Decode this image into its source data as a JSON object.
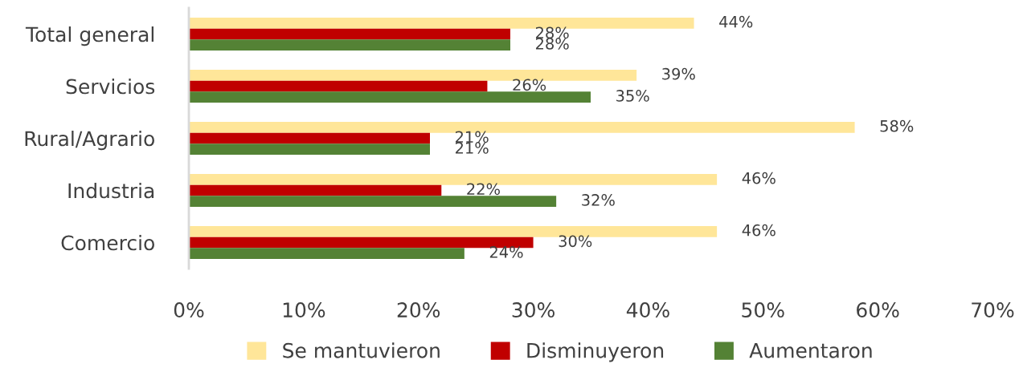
{
  "chart_data": {
    "type": "bar",
    "orientation": "horizontal",
    "categories": [
      "Total general",
      "Servicios",
      "Rural/Agrario",
      "Industria",
      "Comercio"
    ],
    "series": [
      {
        "name": "Se mantuvieron",
        "color": "#ffe699",
        "values": [
          44,
          39,
          58,
          46,
          46
        ],
        "value_labels": [
          "44%",
          "39%",
          "58%",
          "46%",
          "46%"
        ]
      },
      {
        "name": "Disminuyeron",
        "color": "#c00000",
        "values": [
          28,
          26,
          21,
          22,
          30
        ],
        "value_labels": [
          "28%",
          "26%",
          "21%",
          "22%",
          "30%"
        ]
      },
      {
        "name": "Aumentaron",
        "color": "#548235",
        "values": [
          28,
          35,
          21,
          32,
          24
        ],
        "value_labels": [
          "28%",
          "35%",
          "21%",
          "32%",
          "24%"
        ]
      }
    ],
    "xlim": [
      0,
      70
    ],
    "xticks": [
      {
        "value": 0,
        "label": "0%"
      },
      {
        "value": 10,
        "label": "10%"
      },
      {
        "value": 20,
        "label": "20%"
      },
      {
        "value": 30,
        "label": "30%"
      },
      {
        "value": 40,
        "label": "40%"
      },
      {
        "value": 50,
        "label": "50%"
      },
      {
        "value": 60,
        "label": "60%"
      },
      {
        "value": 70,
        "label": "70%"
      }
    ],
    "grid": false,
    "legend": "bottom"
  }
}
